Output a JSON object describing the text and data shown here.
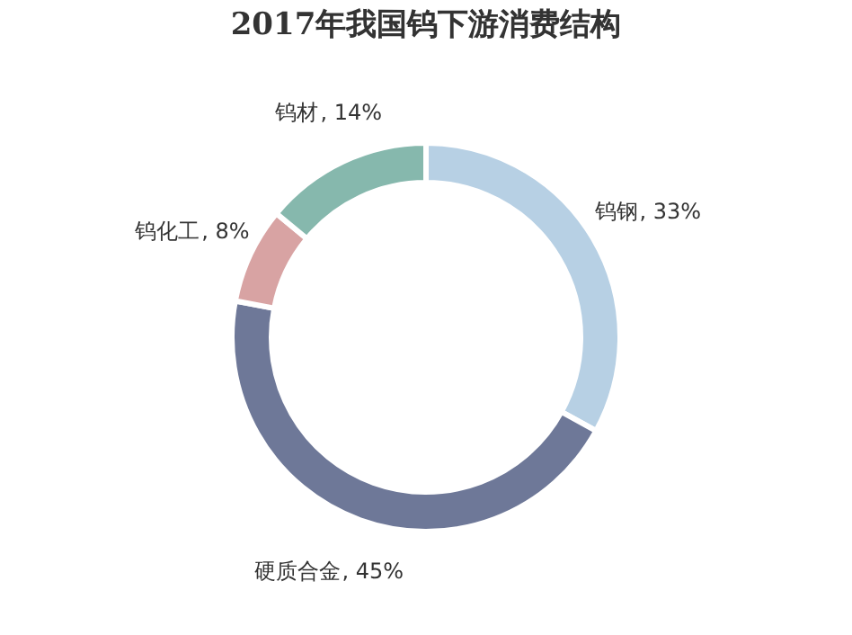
{
  "chart_data": {
    "type": "donut",
    "title": "2017年我国钨下游消费结构",
    "categories": [
      "钨钢",
      "硬质合金",
      "钨化工",
      "钨材"
    ],
    "values": [
      33,
      45,
      8,
      14
    ],
    "colors": [
      "#b7d0e4",
      "#6e7898",
      "#d8a3a3",
      "#86b8ad"
    ],
    "value_labels": [
      ", 33%",
      ", 45%",
      ", 8%",
      ", 14%"
    ],
    "legend": false
  }
}
